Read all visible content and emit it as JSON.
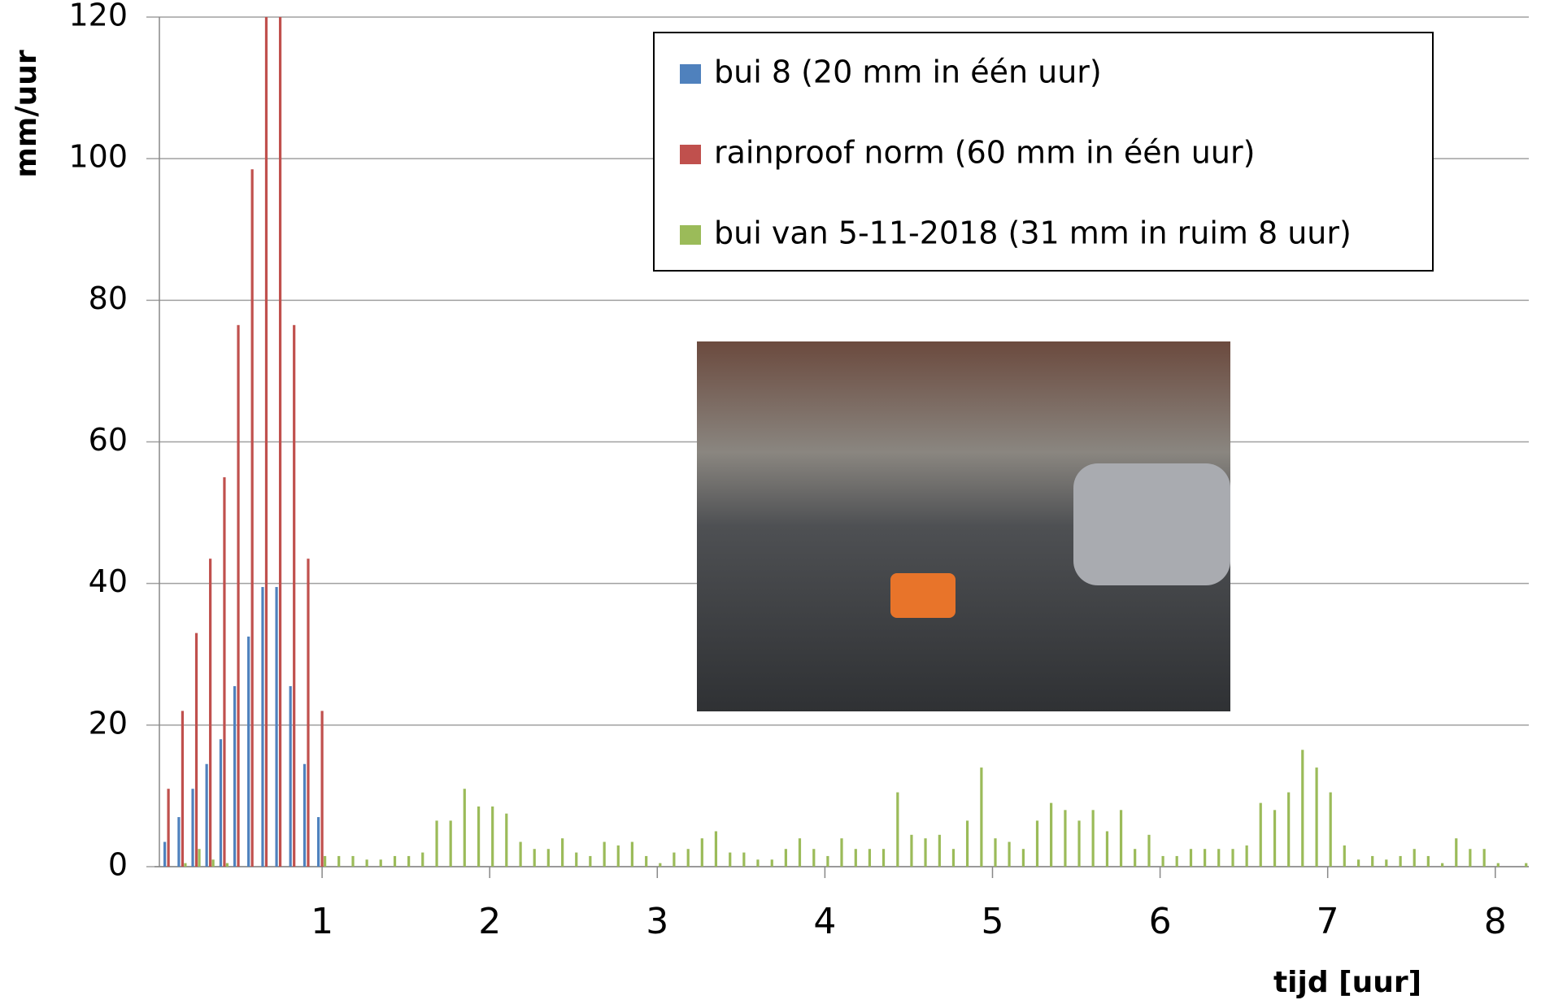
{
  "chart_data": {
    "type": "bar",
    "x_label": "tijd  [uur]",
    "y_label": "mm/uur",
    "xlim": [
      0,
      8.2
    ],
    "xticks": [
      1,
      2,
      3,
      4,
      5,
      6,
      7,
      8
    ],
    "ylim": [
      0,
      120
    ],
    "yticks": [
      0,
      20,
      40,
      60,
      80,
      100,
      120
    ],
    "grid": true,
    "legend": "top-right",
    "x": [
      0.083,
      0.167,
      0.25,
      0.333,
      0.417,
      0.5,
      0.583,
      0.667,
      0.75,
      0.833,
      0.917,
      1,
      1.083,
      1.167,
      1.25,
      1.333,
      1.417,
      1.5,
      1.583,
      1.667,
      1.75,
      1.833,
      1.917,
      2,
      2.083,
      2.167,
      2.25,
      2.333,
      2.417,
      2.5,
      2.583,
      2.667,
      2.75,
      2.833,
      2.917,
      3,
      3.083,
      3.167,
      3.25,
      3.333,
      3.417,
      3.5,
      3.583,
      3.667,
      3.75,
      3.833,
      3.917,
      4,
      4.083,
      4.167,
      4.25,
      4.333,
      4.417,
      4.5,
      4.583,
      4.667,
      4.75,
      4.833,
      4.917,
      5,
      5.083,
      5.167,
      5.25,
      5.333,
      5.417,
      5.5,
      5.583,
      5.667,
      5.75,
      5.833,
      5.917,
      6,
      6.083,
      6.167,
      6.25,
      6.333,
      6.417,
      6.5,
      6.583,
      6.667,
      6.75,
      6.833,
      6.917,
      7,
      7.083,
      7.167,
      7.25,
      7.333,
      7.417,
      7.5,
      7.583,
      7.667,
      7.75,
      7.833,
      7.917,
      8,
      8.083,
      8.167
    ],
    "series": [
      {
        "name": "bui 8  (20 mm in één uur)",
        "color": "#4f81bd",
        "values": [
          3.5,
          7,
          11,
          14.5,
          18,
          25.5,
          32.5,
          39.5,
          39.5,
          25.5,
          14.5,
          7,
          null,
          null,
          null,
          null,
          null,
          null,
          null,
          null,
          null,
          null,
          null,
          null,
          null,
          null,
          null,
          null,
          null,
          null,
          null,
          null,
          null,
          null,
          null,
          null,
          null,
          null,
          null,
          null,
          null,
          null,
          null,
          null,
          null,
          null,
          null,
          null,
          null,
          null,
          null,
          null,
          null,
          null,
          null,
          null,
          null,
          null,
          null,
          null,
          null,
          null,
          null,
          null,
          null,
          null,
          null,
          null,
          null,
          null,
          null,
          null,
          null,
          null,
          null,
          null,
          null,
          null,
          null,
          null,
          null,
          null,
          null,
          null,
          null,
          null,
          null,
          null,
          null,
          null,
          null,
          null,
          null,
          null,
          null,
          null,
          null,
          null
        ]
      },
      {
        "name": "rainproof norm  (60 mm in één uur)",
        "color": "#c0504d",
        "values": [
          11,
          22,
          33,
          43.5,
          55,
          76.5,
          98.5,
          120,
          120,
          76.5,
          43.5,
          22,
          null,
          null,
          null,
          null,
          null,
          null,
          null,
          null,
          null,
          null,
          null,
          null,
          null,
          null,
          null,
          null,
          null,
          null,
          null,
          null,
          null,
          null,
          null,
          null,
          null,
          null,
          null,
          null,
          null,
          null,
          null,
          null,
          null,
          null,
          null,
          null,
          null,
          null,
          null,
          null,
          null,
          null,
          null,
          null,
          null,
          null,
          null,
          null,
          null,
          null,
          null,
          null,
          null,
          null,
          null,
          null,
          null,
          null,
          null,
          null,
          null,
          null,
          null,
          null,
          null,
          null,
          null,
          null,
          null,
          null,
          null,
          null,
          null,
          null,
          null,
          null,
          null,
          null,
          null,
          null,
          null,
          null,
          null,
          null,
          null,
          null
        ]
      },
      {
        "name": "bui van 5-11-2018  (31 mm in ruim 8 uur)",
        "color": "#9bbb59",
        "values": [
          0,
          0.5,
          2.5,
          1,
          0.5,
          0,
          0,
          0,
          0,
          0,
          0,
          1.5,
          1.5,
          1.5,
          1,
          1,
          1.5,
          1.5,
          2,
          6.5,
          6.5,
          11,
          8.5,
          8.5,
          7.5,
          3.5,
          2.5,
          2.5,
          4,
          2,
          1.5,
          3.5,
          3,
          3.5,
          1.5,
          0.5,
          2,
          2.5,
          4,
          5,
          2,
          2,
          1,
          1,
          2.5,
          4,
          2.5,
          1.5,
          4,
          2.5,
          2.5,
          2.5,
          10.5,
          4.5,
          4,
          4.5,
          2.5,
          6.5,
          14,
          4,
          3.5,
          2.5,
          6.5,
          9,
          8,
          6.5,
          8,
          5,
          8,
          2.5,
          4.5,
          1.5,
          1.5,
          2.5,
          2.5,
          2.5,
          2.5,
          3,
          9,
          8,
          10.5,
          16.5,
          14,
          10.5,
          3,
          1,
          1.5,
          1,
          1.5,
          2.5,
          1.5,
          0.5,
          4,
          2.5,
          2.5,
          0.5,
          0,
          0.5
        ]
      }
    ]
  }
}
